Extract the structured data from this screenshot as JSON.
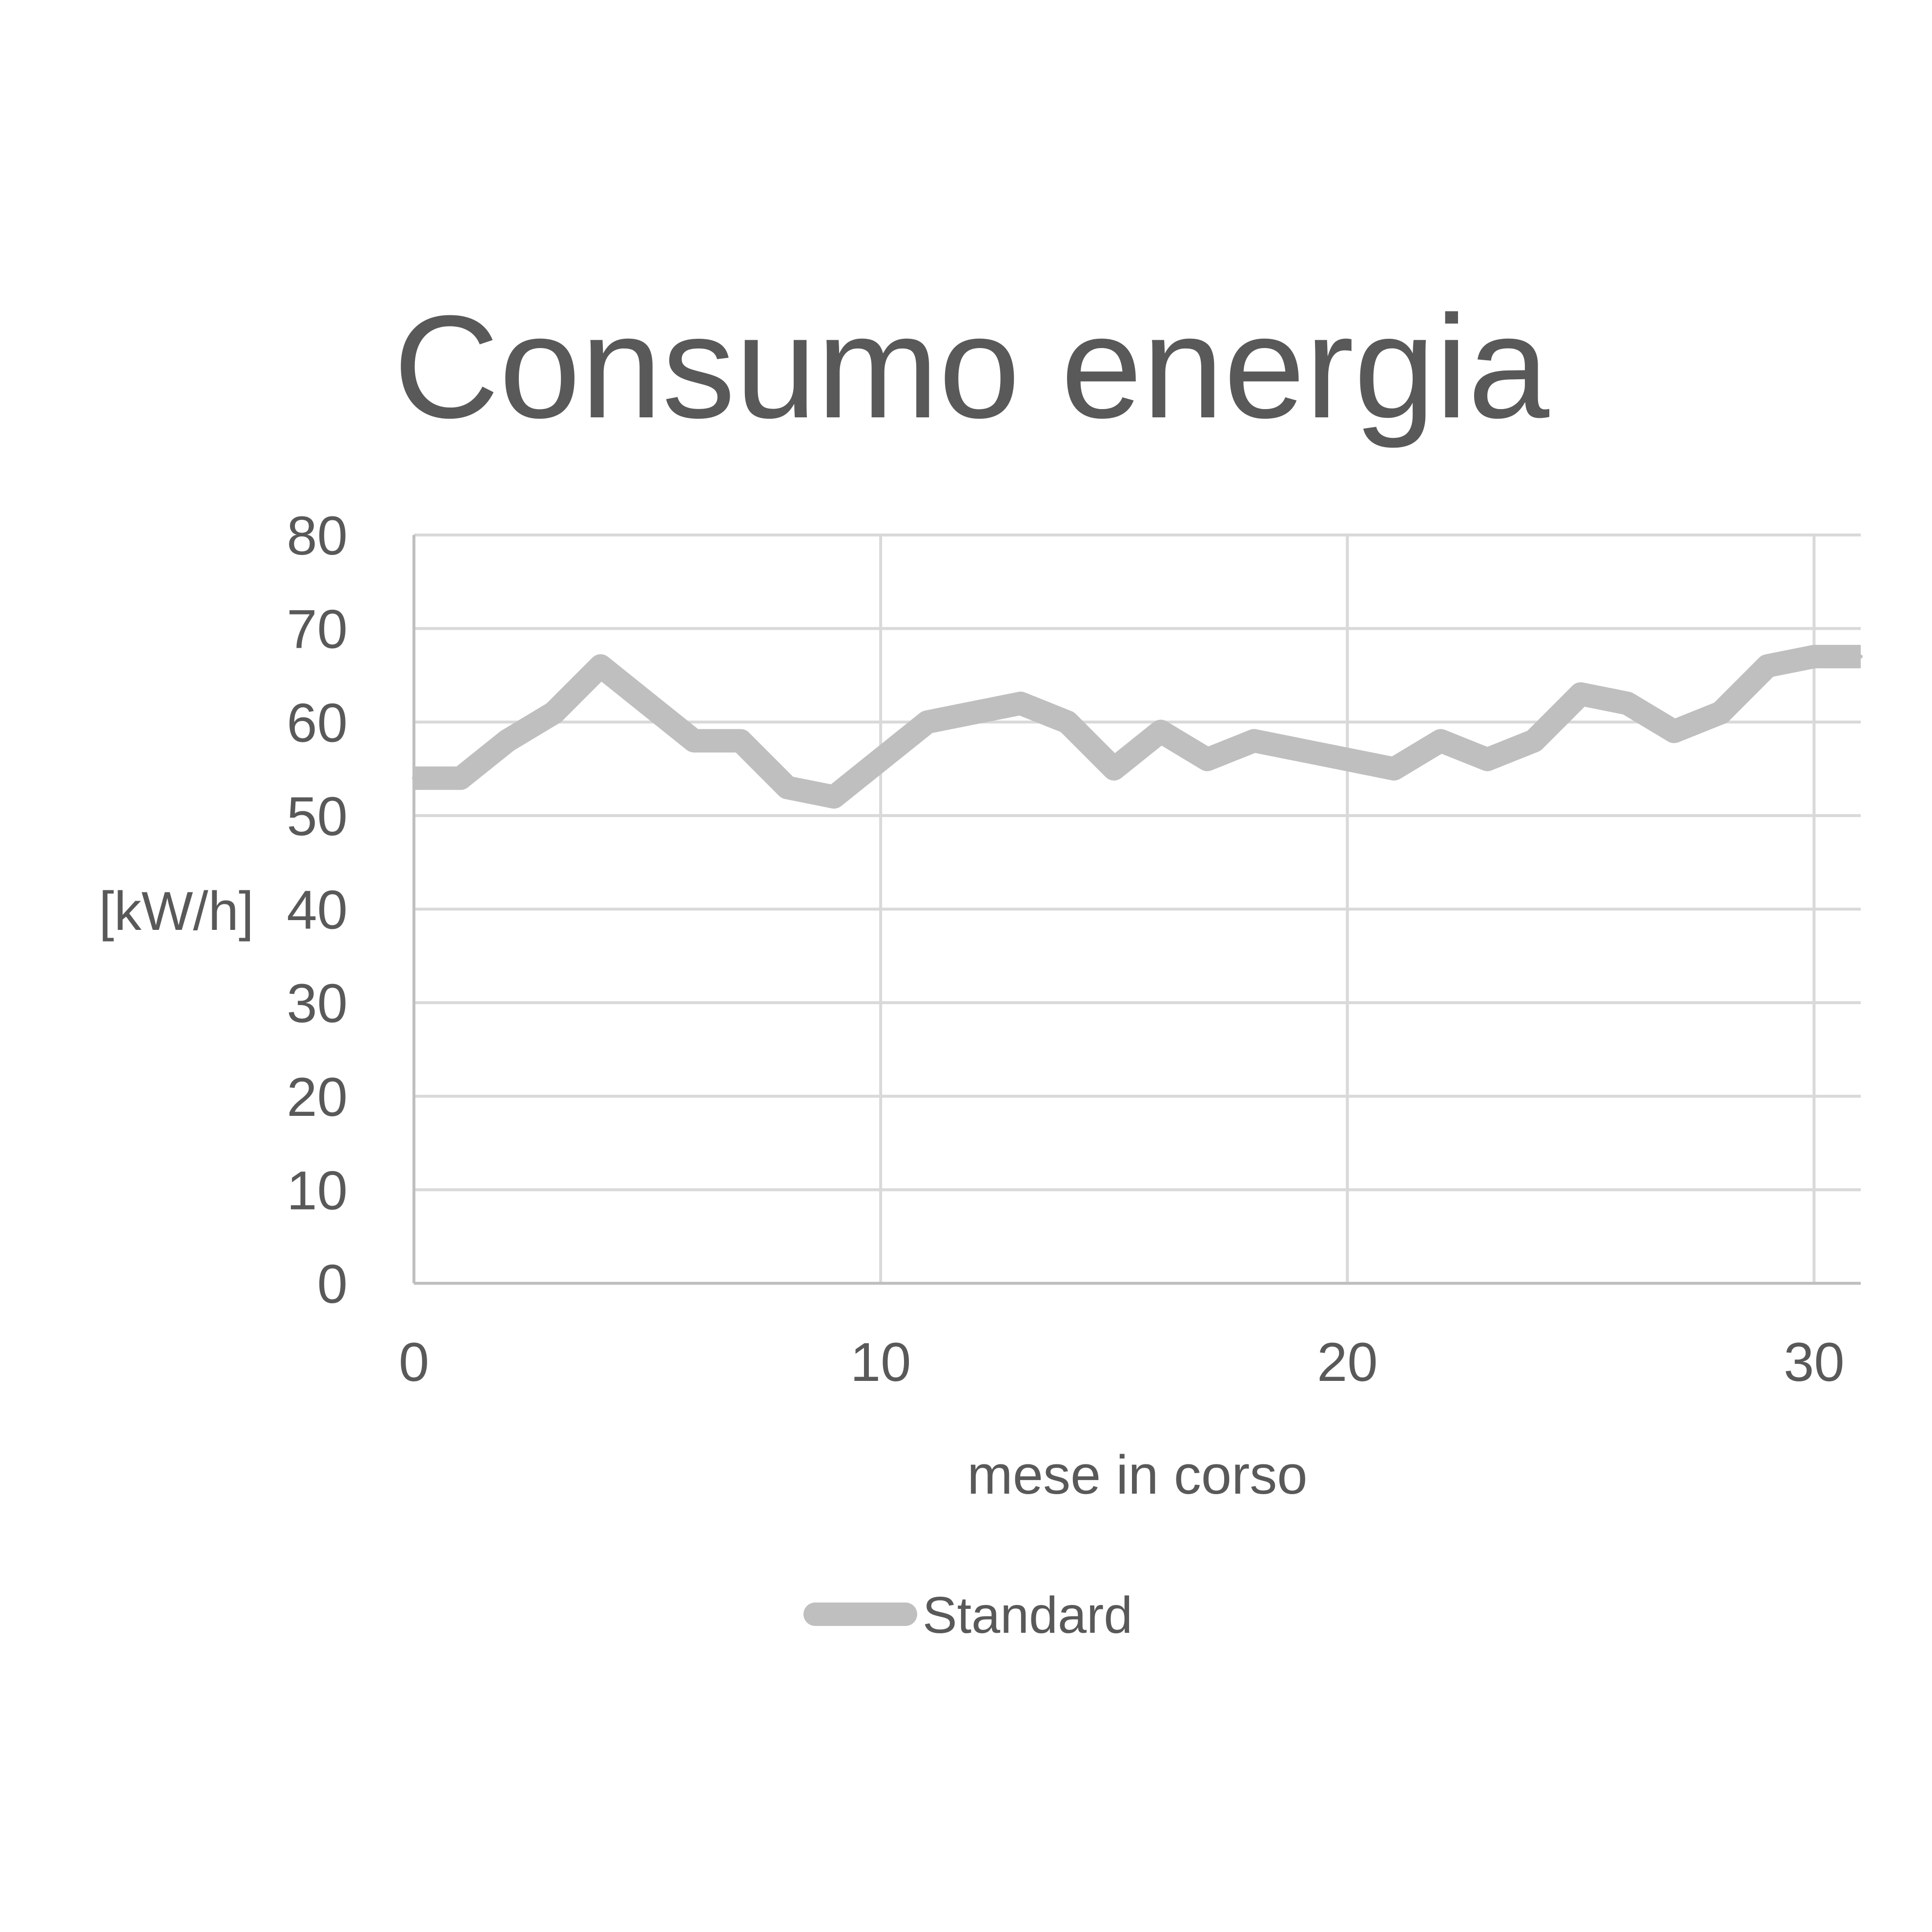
{
  "chart_data": {
    "type": "line",
    "title": "Consumo energia",
    "xlabel": "mese in corso",
    "ylabel": "[kW/h]",
    "xlim": [
      0,
      31
    ],
    "ylim": [
      0,
      80
    ],
    "xticks": [
      0,
      10,
      20,
      30
    ],
    "yticks": [
      0,
      10,
      20,
      30,
      40,
      50,
      60,
      70,
      80
    ],
    "grid": true,
    "legend_position": "bottom",
    "series": [
      {
        "name": "Standard",
        "color": "#bfbfbf",
        "x": [
          0,
          1,
          2,
          3,
          4,
          5,
          6,
          7,
          8,
          9,
          10,
          11,
          12,
          13,
          14,
          15,
          16,
          17,
          18,
          19,
          20,
          21,
          22,
          23,
          24,
          25,
          26,
          27,
          28,
          29,
          30,
          31
        ],
        "y": [
          54,
          54,
          58,
          61,
          66,
          62,
          58,
          58,
          53,
          52,
          56,
          60,
          61,
          62,
          60,
          55,
          59,
          56,
          58,
          57,
          56,
          55,
          58,
          56,
          58,
          63,
          62,
          59,
          61,
          66,
          67,
          67
        ]
      }
    ]
  }
}
